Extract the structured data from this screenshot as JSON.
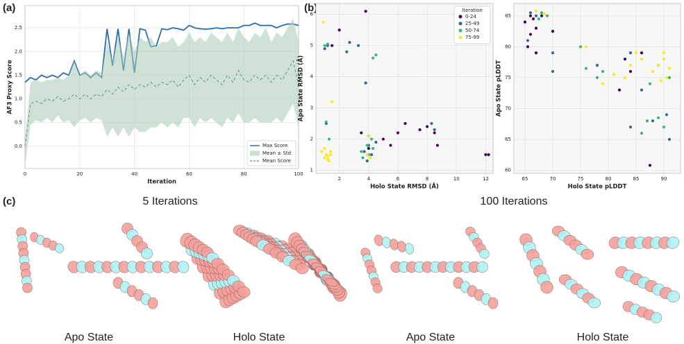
{
  "panel_labels": [
    "(a)",
    "(b)",
    "(c)"
  ],
  "structures": {
    "left_title": "5 Iterations",
    "right_title": "100 Iterations",
    "labels": [
      "Apo State",
      "Holo State",
      "Apo State",
      "Holo State"
    ]
  },
  "chart_data": [
    {
      "type": "line",
      "xlabel": "Iteration",
      "ylabel": "AF3 Proxy Score",
      "x": [
        0,
        2,
        4,
        6,
        8,
        10,
        12,
        14,
        16,
        18,
        20,
        22,
        24,
        26,
        28,
        30,
        32,
        34,
        36,
        38,
        40,
        42,
        44,
        46,
        48,
        50,
        52,
        54,
        56,
        58,
        60,
        62,
        64,
        66,
        68,
        70,
        72,
        74,
        76,
        78,
        80,
        82,
        84,
        86,
        88,
        90,
        92,
        94,
        96,
        98,
        100
      ],
      "series": [
        {
          "name": "Max Score",
          "color": "#2a6fab",
          "values": [
            1.35,
            1.45,
            1.4,
            1.5,
            1.45,
            1.5,
            1.45,
            1.55,
            1.5,
            1.8,
            1.5,
            1.55,
            1.45,
            1.55,
            1.45,
            2.48,
            1.7,
            2.48,
            1.6,
            2.48,
            1.55,
            2.48,
            2.45,
            2.1,
            2.12,
            2.48,
            2.46,
            2.5,
            2.48,
            2.45,
            2.55,
            2.5,
            2.48,
            2.47,
            2.48,
            2.5,
            2.48,
            2.5,
            2.5,
            2.5,
            2.55,
            2.55,
            2.6,
            2.55,
            2.55,
            2.55,
            2.5,
            2.55,
            2.58,
            2.58,
            2.55
          ]
        },
        {
          "name": "Mean ± Std",
          "color": "#a9cbb3",
          "lower": [
            -0.4,
            0.45,
            0.55,
            0.5,
            0.6,
            0.5,
            0.65,
            0.5,
            0.55,
            0.4,
            0.55,
            0.6,
            0.5,
            0.6,
            0.55,
            0.2,
            0.4,
            0.2,
            0.4,
            0.2,
            0.4,
            0.3,
            0.3,
            0.4,
            0.4,
            0.5,
            0.4,
            0.5,
            0.4,
            0.6,
            0.6,
            0.4,
            0.6,
            0.5,
            0.6,
            0.5,
            0.4,
            0.6,
            0.5,
            0.7,
            0.5,
            0.5,
            0.6,
            0.5,
            0.5,
            0.5,
            0.6,
            0.5,
            0.7,
            0.9,
            0.4
          ],
          "upper": [
            0.1,
            1.35,
            1.4,
            1.35,
            1.4,
            1.4,
            1.45,
            1.4,
            1.5,
            1.8,
            1.5,
            1.6,
            1.5,
            1.6,
            1.55,
            2.2,
            1.8,
            2.3,
            1.9,
            2.4,
            2.0,
            2.3,
            2.2,
            2.3,
            2.1,
            2.2,
            2.2,
            2.3,
            2.1,
            2.2,
            2.4,
            2.2,
            2.3,
            2.2,
            2.4,
            2.3,
            2.2,
            2.4,
            2.2,
            2.5,
            2.3,
            2.2,
            2.4,
            2.3,
            2.5,
            2.2,
            2.4,
            2.3,
            2.5,
            2.7,
            2.2
          ]
        },
        {
          "name": "Mean Score",
          "color": "#6aa88a",
          "dash": true,
          "values": [
            0.0,
            0.9,
            0.95,
            0.9,
            1.0,
            0.95,
            1.05,
            0.95,
            1.0,
            1.1,
            1.0,
            1.1,
            1.0,
            1.1,
            1.05,
            1.2,
            1.1,
            1.25,
            1.15,
            1.3,
            1.2,
            1.3,
            1.25,
            1.35,
            1.25,
            1.35,
            1.3,
            1.4,
            1.25,
            1.4,
            1.5,
            1.3,
            1.45,
            1.35,
            1.5,
            1.4,
            1.3,
            1.5,
            1.35,
            1.6,
            1.4,
            1.35,
            1.5,
            1.4,
            1.5,
            1.35,
            1.5,
            1.4,
            1.6,
            1.8,
            1.3
          ]
        }
      ],
      "xlim": [
        0,
        100
      ],
      "ylim": [
        -0.47,
        2.97
      ],
      "xticks": [
        0,
        20,
        40,
        60,
        80,
        100
      ],
      "yticks": [
        {
          "value": 0,
          "label": "0.0"
        },
        0.5,
        {
          "value": 1,
          "label": "1.0"
        },
        1.5,
        {
          "value": 2,
          "label": "2.0"
        },
        2.5
      ],
      "grid": true,
      "legend": "lower right"
    },
    {
      "type": "scatter",
      "xlabel": "Holo State RMSD (Å)",
      "ylabel": "Apo State RMSD (Å)",
      "legend_title": "Iteration",
      "legend": "upper right",
      "series": [
        {
          "name": "0-24",
          "color": "#440154",
          "x": [
            2,
            1.5,
            3.5,
            4,
            5,
            6.5,
            7.5,
            8,
            8.5,
            8.7,
            12,
            12.2,
            3.8,
            4,
            6,
            5.5
          ],
          "y": [
            5.5,
            5.0,
            2.2,
            2.1,
            2,
            2.5,
            2.3,
            2.4,
            2.2,
            1.8,
            1.5,
            1.5,
            6.1,
            1.7,
            2.2,
            1.8
          ]
        },
        {
          "name": "25-49",
          "color": "#31688e",
          "x": [
            1.2,
            1,
            2.7,
            3.3,
            3.8,
            4,
            4.2,
            3.9,
            1.1,
            8.3,
            8.5,
            3.7,
            4.5,
            2.5
          ],
          "y": [
            5.0,
            4.9,
            5.1,
            5.0,
            3.8,
            1.8,
            1.5,
            1.3,
            2.5,
            2.5,
            2.3,
            1.6,
            1.9,
            4.8
          ]
        },
        {
          "name": "50-74",
          "color": "#35b779",
          "x": [
            1,
            1.2,
            1.1,
            1.3,
            3.5,
            4,
            4.2,
            4.5,
            4.3,
            3.9,
            4.3,
            3.6
          ],
          "y": [
            5.0,
            5.05,
            2.55,
            2.0,
            1.6,
            1.5,
            2.0,
            4.7,
            4.6,
            1.8,
            1.7,
            1.4
          ]
        },
        {
          "name": "75-99",
          "color": "#fde725",
          "x": [
            0.9,
            1.1,
            1.0,
            0.8,
            1.2,
            1.4,
            1.5,
            1.3,
            3.9,
            4.1,
            1.0,
            1.2,
            4,
            1.4
          ],
          "y": [
            5.75,
            1.5,
            1.4,
            1.6,
            1.35,
            1.5,
            3.2,
            1.3,
            1.5,
            1.4,
            1.7,
            1.45,
            2.1,
            1.6
          ]
        }
      ],
      "xlim": [
        0.4,
        12.5
      ],
      "ylim": [
        0.9,
        6.35
      ],
      "xticks": [
        2,
        4,
        6,
        8,
        10,
        12
      ],
      "yticks": [
        1,
        2,
        3,
        4,
        5,
        6
      ],
      "grid": true
    },
    {
      "type": "scatter",
      "xlabel": "Holo State pLDDT",
      "ylabel": "Apo State pLDDT",
      "series": [
        {
          "color": "#440154",
          "x": [
            65,
            66,
            65.5,
            66,
            67,
            66.5,
            68,
            67,
            84,
            82,
            86,
            87.5,
            83,
            70
          ],
          "y": [
            84,
            82,
            80,
            85,
            83,
            84.5,
            85,
            79,
            76,
            73,
            79,
            60.8,
            78,
            82.5
          ]
        },
        {
          "color": "#31688e",
          "x": [
            66,
            67,
            65.5,
            70,
            70,
            78,
            84,
            86,
            89,
            91,
            90.5,
            84,
            88
          ],
          "y": [
            85.5,
            85,
            81,
            76,
            79,
            77,
            67,
            73,
            77,
            65,
            69,
            79,
            68
          ]
        },
        {
          "color": "#35b779",
          "x": [
            68,
            69,
            67.5,
            75,
            76,
            86,
            87,
            90,
            89,
            78,
            87.5,
            91,
            79
          ],
          "y": [
            85.5,
            85,
            84.5,
            80,
            76.5,
            66,
            68,
            67,
            68.5,
            75,
            74,
            75,
            76
          ]
        },
        {
          "color": "#fde725",
          "x": [
            68.5,
            67,
            76,
            79,
            81,
            83,
            84,
            85,
            86,
            88,
            89,
            90,
            90.5,
            91,
            89.5,
            90
          ],
          "y": [
            85.3,
            85.8,
            80,
            74,
            75.5,
            75,
            77,
            79,
            78,
            76,
            77,
            78,
            75,
            76.5,
            74.5,
            79
          ]
        }
      ],
      "xlim": [
        63,
        93
      ],
      "ylim": [
        59.5,
        87
      ],
      "xticks": [
        65,
        70,
        75,
        80,
        85,
        90
      ],
      "yticks": [
        60,
        65,
        70,
        75,
        80,
        85
      ],
      "grid": true
    }
  ]
}
